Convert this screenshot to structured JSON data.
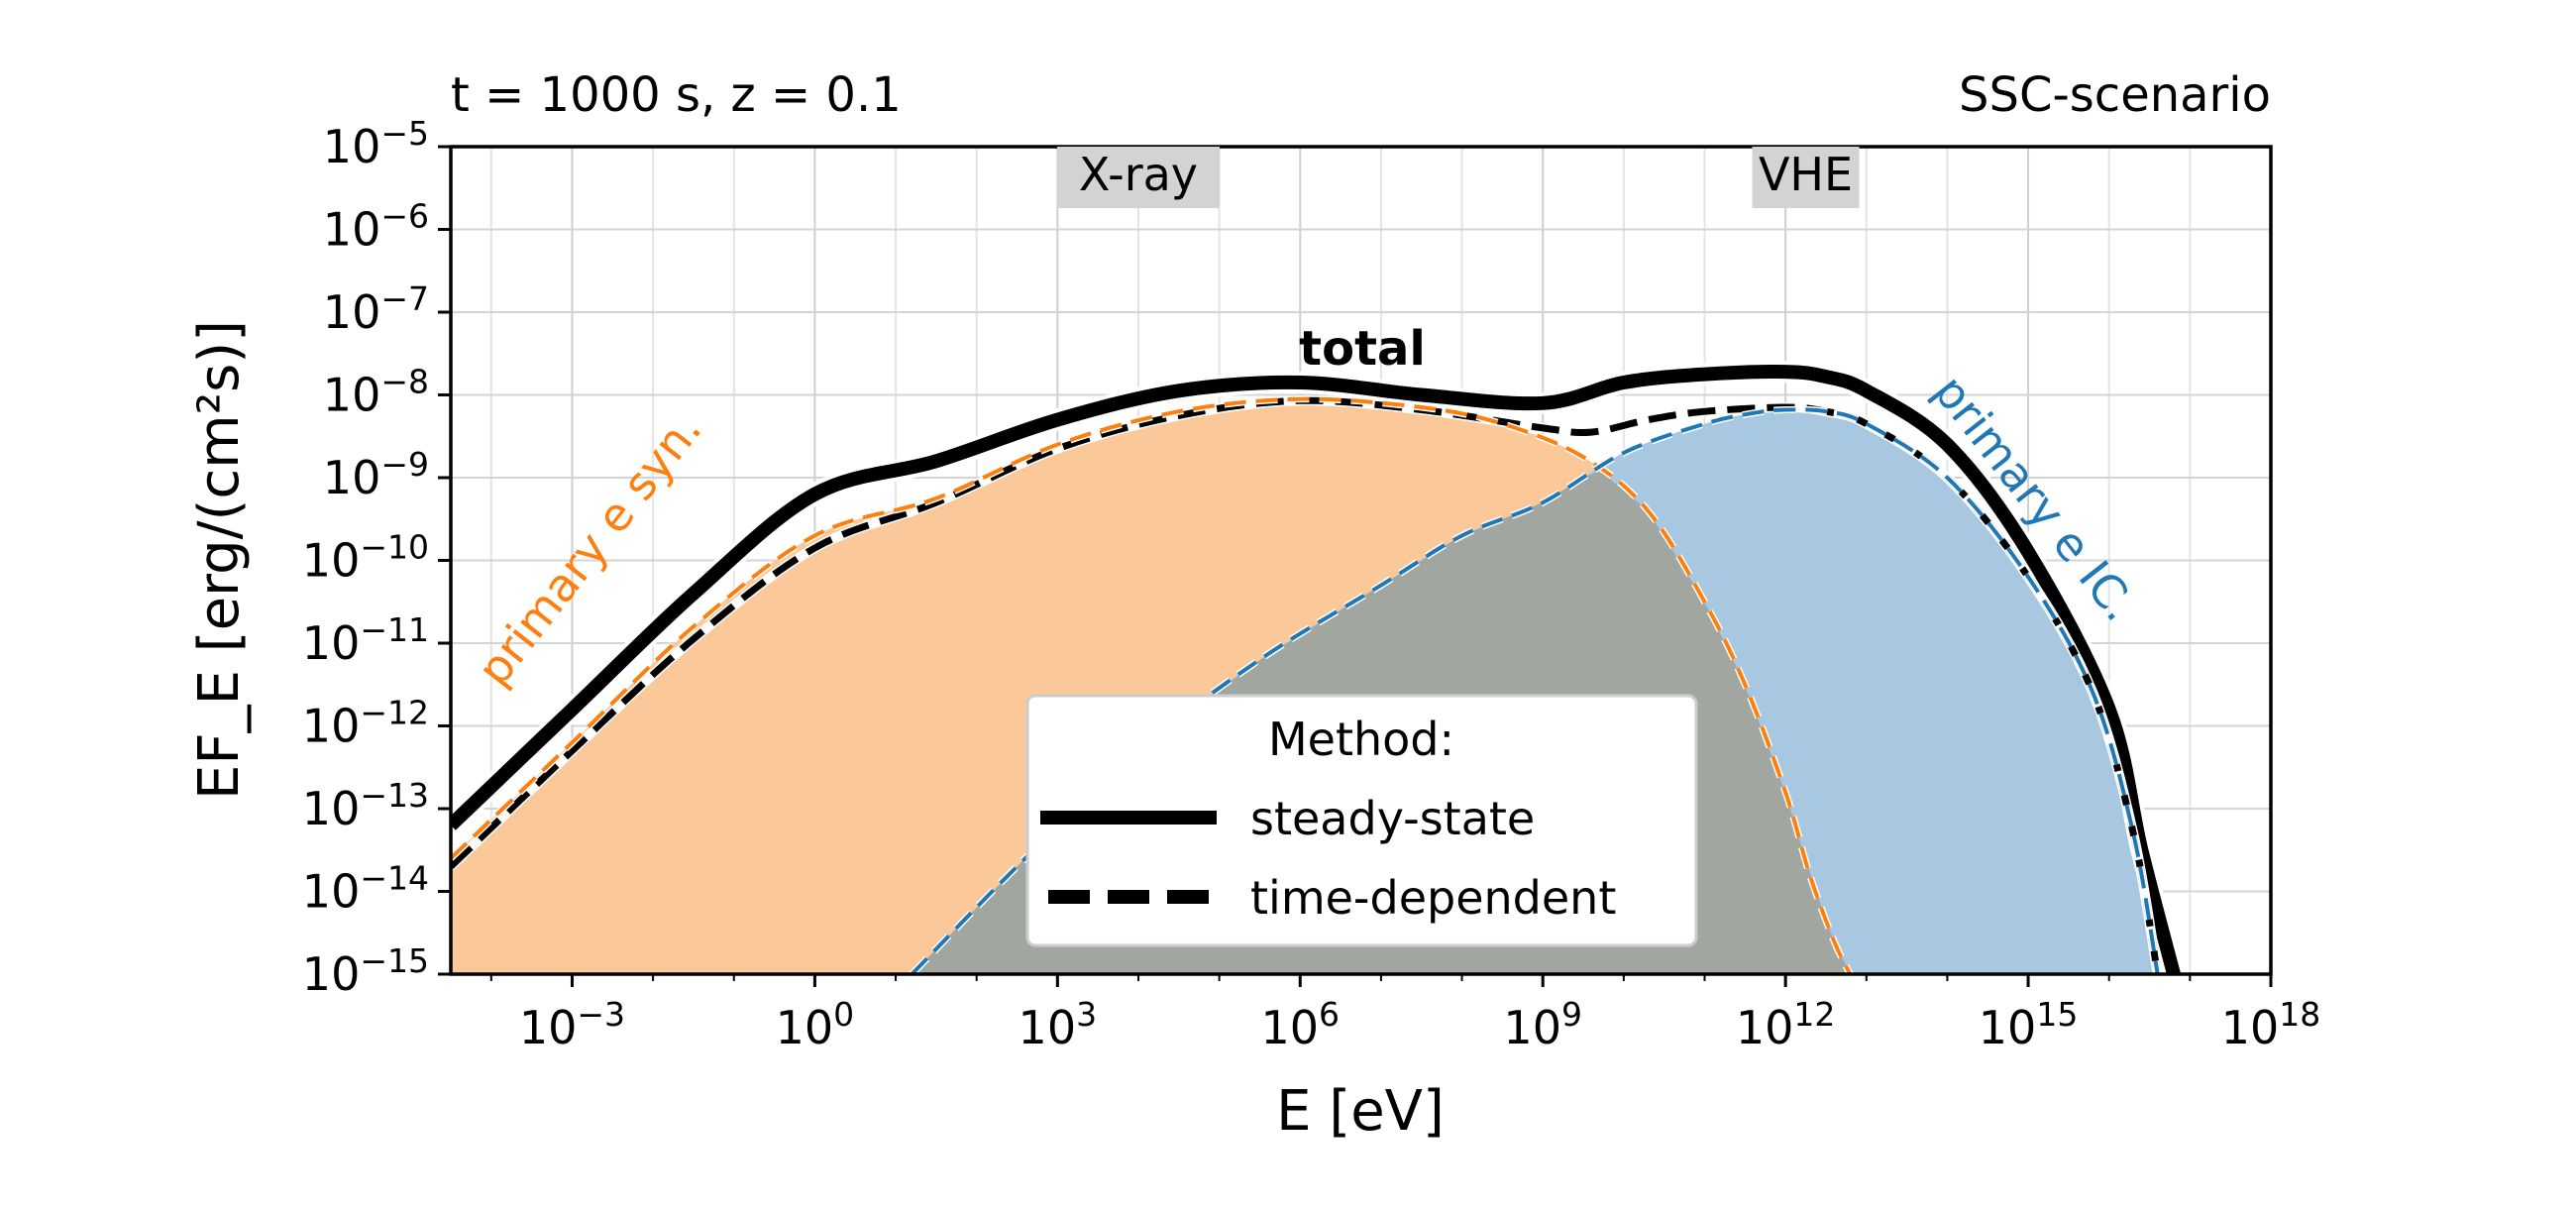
{
  "chart_data": {
    "type": "area",
    "title_left": "t = 1000 s, z = 0.1",
    "title_right": "SSC-scenario",
    "xlabel": "E [eV]",
    "ylabel": "EF_E [erg/(cm²s)]",
    "x_scale": "log",
    "y_scale": "log",
    "xlim_log10": [
      -4.5,
      18
    ],
    "ylim_log10": [
      -15,
      -5
    ],
    "xtick_exponents": [
      -3,
      0,
      3,
      6,
      9,
      12,
      15,
      18
    ],
    "ytick_exponents": [
      -5,
      -6,
      -7,
      -8,
      -9,
      -10,
      -11,
      -12,
      -13,
      -14,
      -15
    ],
    "grid": true,
    "bands": [
      {
        "label": "X-ray",
        "x_log10_center": 4
      },
      {
        "label": "VHE",
        "x_log10_center": 12.25
      }
    ],
    "annotations": {
      "total": "total",
      "syn": "primary e syn.",
      "ic": "primary e IC."
    },
    "colors": {
      "syn": "#ff7f0e",
      "syn_fill": "#fbc89a",
      "ic": "#1f77b4",
      "ic_fill": "#a8c8e2",
      "overlap_fill": "#a2a6a0",
      "total": "#000000"
    },
    "series": [
      {
        "key": "syn",
        "style": "orange dashed, filled",
        "x_log10": [
          -4.5,
          -3,
          -1.5,
          0,
          1.5,
          3,
          4.5,
          6,
          7.5,
          8.5,
          9.5,
          10.3,
          11,
          11.5,
          12,
          12.3,
          12.6,
          12.8
        ],
        "y_log10": [
          -13.6,
          -12.2,
          -10.8,
          -9.7,
          -9.25,
          -8.6,
          -8.2,
          -8.05,
          -8.15,
          -8.35,
          -8.75,
          -9.4,
          -10.5,
          -11.5,
          -12.8,
          -13.8,
          -14.6,
          -15.0
        ]
      },
      {
        "key": "ic",
        "style": "blue dashed, filled",
        "x_log10": [
          1.2,
          2.5,
          4,
          5.5,
          7,
          8,
          9,
          10,
          11,
          11.6,
          12,
          12.5,
          13,
          14,
          15,
          15.8,
          16.3,
          16.6
        ],
        "y_log10": [
          -15.0,
          -13.7,
          -12.3,
          -11.2,
          -10.3,
          -9.7,
          -9.3,
          -8.7,
          -8.35,
          -8.22,
          -8.18,
          -8.2,
          -8.35,
          -9.0,
          -10.2,
          -11.6,
          -13.3,
          -15.0
        ]
      },
      {
        "key": "total_steady",
        "name": "steady-state",
        "style": "solid",
        "x_log10": [
          -4.5,
          -3,
          -1.5,
          0,
          1.5,
          3,
          4.5,
          6,
          7.5,
          9,
          10,
          11,
          12,
          12.5,
          13,
          14,
          15,
          16,
          16.4,
          16.8
        ],
        "y_log10": [
          -13.2,
          -11.8,
          -10.4,
          -9.2,
          -8.8,
          -8.3,
          -7.95,
          -7.85,
          -8.0,
          -8.1,
          -7.85,
          -7.75,
          -7.72,
          -7.78,
          -7.95,
          -8.6,
          -9.9,
          -11.8,
          -13.5,
          -15.0
        ]
      },
      {
        "key": "total_time",
        "name": "time-dependent",
        "style": "dashed",
        "x_log10": [
          -4.5,
          -3,
          -1.5,
          0,
          1.5,
          3,
          4.5,
          6,
          7.5,
          9,
          9.6,
          10.3,
          11,
          12,
          12.5,
          13,
          14,
          15,
          15.8,
          16.3,
          16.6
        ],
        "y_log10": [
          -13.7,
          -12.3,
          -10.95,
          -9.85,
          -9.3,
          -8.65,
          -8.25,
          -8.07,
          -8.18,
          -8.4,
          -8.45,
          -8.3,
          -8.2,
          -8.15,
          -8.2,
          -8.35,
          -9.0,
          -10.2,
          -11.6,
          -13.3,
          -15.0
        ]
      }
    ],
    "legend": {
      "title": "Method:",
      "placement": "lower-center",
      "entries": [
        "steady-state",
        "time-dependent"
      ]
    }
  }
}
